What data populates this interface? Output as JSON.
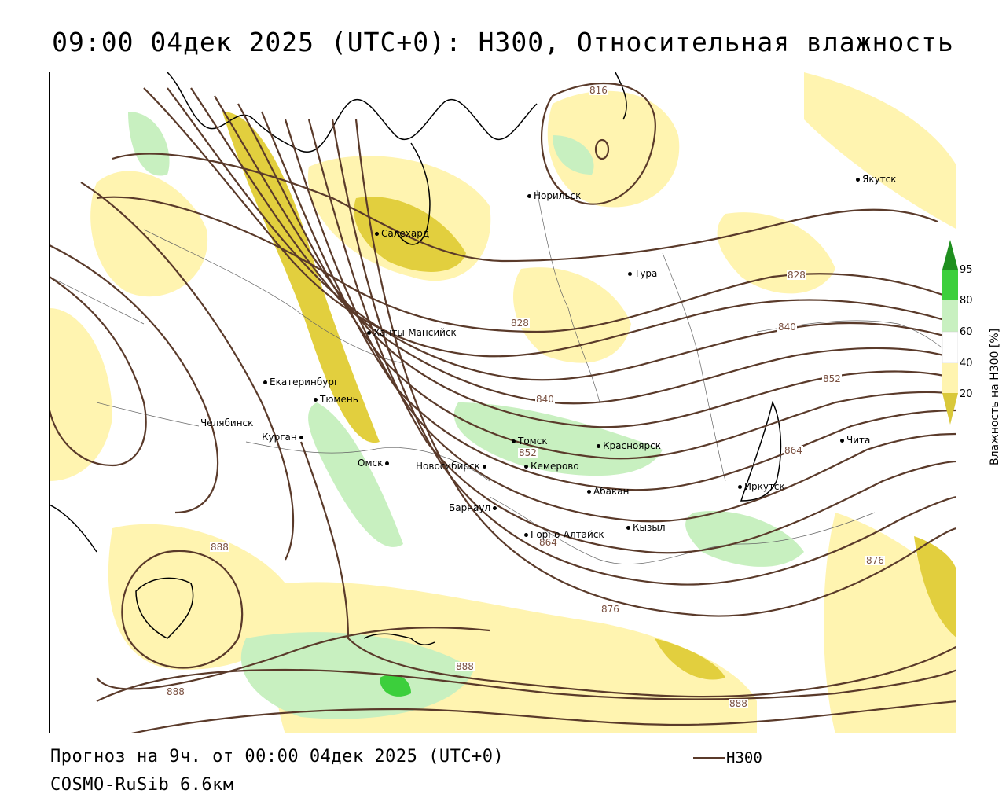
{
  "title": "09:00 04дек 2025 (UTC+0): H300, Относительная влажность",
  "footer": {
    "forecast": "Прогноз на 9ч. от 00:00 04дек 2025 (UTC+0)",
    "model": "COSMO-RuSib 6.6км"
  },
  "legend": {
    "h300_label": "H300",
    "line_color": "#5a3a2a"
  },
  "colorbar": {
    "title": "Влажность на H300 [%]",
    "ticks": [
      "95",
      "80",
      "60",
      "40",
      "20"
    ],
    "colors": {
      "gt95": "#1f8f1f",
      "80_95": "#3ccf3c",
      "60_80": "#c8f0c0",
      "40_60": "#ffffff",
      "20_40": "#fff4b0",
      "lt20": "#d9c83a"
    }
  },
  "cities": [
    {
      "name": "Норильск"
    },
    {
      "name": "Якутск"
    },
    {
      "name": "Салехард"
    },
    {
      "name": "Тура"
    },
    {
      "name": "Ханты-Мансийск"
    },
    {
      "name": "Екатеринбург"
    },
    {
      "name": "Тюмень"
    },
    {
      "name": "Челябинск"
    },
    {
      "name": "Курган"
    },
    {
      "name": "Омск"
    },
    {
      "name": "Томск"
    },
    {
      "name": "Новосибирск"
    },
    {
      "name": "Кемерово"
    },
    {
      "name": "Красноярск"
    },
    {
      "name": "Абакан"
    },
    {
      "name": "Барнаул"
    },
    {
      "name": "Горно-Алтайск"
    },
    {
      "name": "Кызыл"
    },
    {
      "name": "Иркутск"
    },
    {
      "name": "Чита"
    }
  ],
  "isolines": [
    "816",
    "828",
    "828",
    "840",
    "840",
    "852",
    "852",
    "864",
    "864",
    "876",
    "876",
    "888",
    "888",
    "888",
    "888"
  ]
}
